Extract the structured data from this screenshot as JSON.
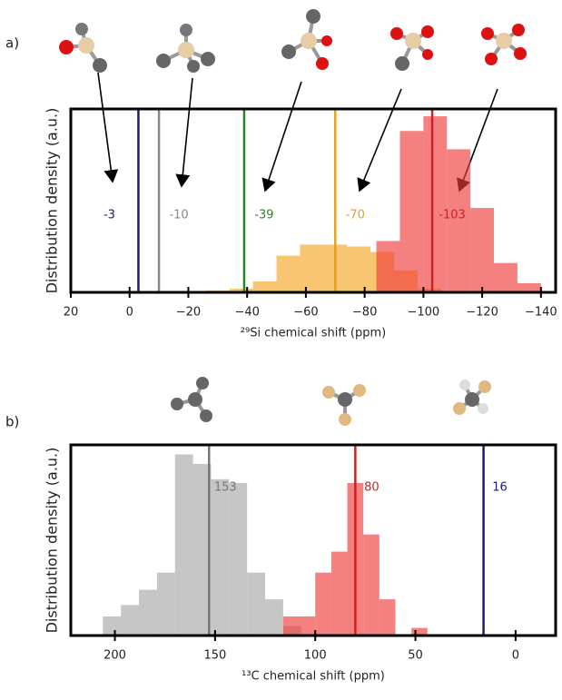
{
  "chart_data": [
    {
      "type": "histogram",
      "panel_label": "a)",
      "ylabel": "Distribution density (a.u.)",
      "xlabel": "²⁹Si chemical shift (ppm)",
      "xlim": [
        20,
        -145
      ],
      "ylim": [
        0,
        1
      ],
      "xticks": [
        20,
        0,
        {
          "value": -20,
          "label": "−20"
        },
        {
          "value": -40,
          "label": "−40"
        },
        {
          "value": -60,
          "label": "−60"
        },
        {
          "value": -80,
          "label": "−80"
        },
        {
          "value": -100,
          "label": "−100"
        },
        {
          "value": -120,
          "label": "−120"
        },
        {
          "value": -140,
          "label": "−140"
        }
      ],
      "series": [
        {
          "color": "#f5a623",
          "bins": [
            -26,
            -34,
            -42,
            -50,
            -58,
            -66,
            -74,
            -82,
            -90,
            -98,
            -106
          ],
          "counts": [
            0.01,
            0.02,
            0.06,
            0.2,
            0.26,
            0.26,
            0.25,
            0.22,
            0.12,
            0.02
          ]
        },
        {
          "color": "#f03c3c",
          "bins": [
            -84,
            -92,
            -100,
            -108,
            -116,
            -124,
            -132,
            -140
          ],
          "counts": [
            0.28,
            0.88,
            0.96,
            0.78,
            0.46,
            0.16,
            0.05
          ]
        }
      ],
      "vlines": [
        {
          "value": -3,
          "color": "#1c1c78"
        },
        {
          "value": -10,
          "color": "#888888"
        },
        {
          "value": -39,
          "color": "#228b22"
        },
        {
          "value": -70,
          "color": "#e8a020"
        },
        {
          "value": -103,
          "color": "#cc2222"
        }
      ]
    },
    {
      "type": "histogram",
      "panel_label": "b)",
      "ylabel": "Distribution density (a.u.)",
      "xlabel": "¹³C chemical shift (ppm)",
      "xlim": [
        222,
        -20
      ],
      "ylim": [
        0,
        1
      ],
      "xticks": [
        200,
        150,
        100,
        50,
        0
      ],
      "series": [
        {
          "color": "#a8a8a8",
          "bins": [
            206,
            197,
            188,
            179,
            170,
            161,
            152,
            143,
            134,
            125,
            116,
            107
          ],
          "counts": [
            0.1,
            0.16,
            0.24,
            0.33,
            0.95,
            0.9,
            0.82,
            0.8,
            0.33,
            0.19,
            0.05
          ]
        },
        {
          "color": "#f03c3c",
          "bins": [
            116,
            108,
            100,
            92,
            84,
            76,
            68,
            60,
            52,
            44
          ],
          "counts": [
            0.1,
            0.1,
            0.33,
            0.44,
            0.8,
            0.53,
            0.19,
            0,
            0.04
          ]
        }
      ],
      "vlines": [
        {
          "value": 153,
          "color": "#777777"
        },
        {
          "value": 80,
          "color": "#cc2222"
        },
        {
          "value": 16,
          "color": "#1c1c78"
        }
      ]
    }
  ]
}
